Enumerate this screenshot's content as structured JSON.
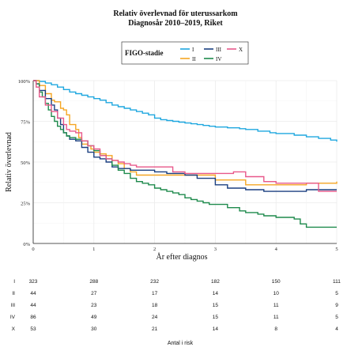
{
  "chart_data": {
    "type": "line",
    "title": "Relativ överlevnad för uterussarkom",
    "subtitle": "Diagnosår 2010–2019, Riket",
    "xlabel": "År efter diagnos",
    "ylabel": "Relativ överlevnad",
    "xlim": [
      0,
      5
    ],
    "ylim": [
      0,
      100
    ],
    "x_ticks": [
      0,
      1,
      2,
      3,
      4,
      5
    ],
    "y_ticks": [
      0,
      25,
      50,
      75,
      100
    ],
    "y_tick_labels": [
      "0%",
      "25%",
      "50%",
      "75%",
      "100%"
    ],
    "grid": true,
    "legend": {
      "title": "FIGO-stadie",
      "placement": "top",
      "rows": [
        [
          "I",
          "III",
          "X"
        ],
        [
          "II",
          "IV"
        ]
      ]
    },
    "series": [
      {
        "name": "I",
        "color": "#1fa7df",
        "points": [
          [
            0,
            100
          ],
          [
            0.05,
            100
          ],
          [
            0.1,
            99.5
          ],
          [
            0.2,
            98.5
          ],
          [
            0.3,
            97.5
          ],
          [
            0.4,
            96
          ],
          [
            0.5,
            94.5
          ],
          [
            0.6,
            93
          ],
          [
            0.7,
            92
          ],
          [
            0.8,
            91
          ],
          [
            0.9,
            90
          ],
          [
            1.0,
            89
          ],
          [
            1.1,
            88
          ],
          [
            1.2,
            86.5
          ],
          [
            1.3,
            85
          ],
          [
            1.4,
            84
          ],
          [
            1.5,
            83
          ],
          [
            1.6,
            82
          ],
          [
            1.7,
            81
          ],
          [
            1.8,
            80
          ],
          [
            1.9,
            79
          ],
          [
            2.0,
            77
          ],
          [
            2.1,
            76
          ],
          [
            2.2,
            75.5
          ],
          [
            2.3,
            75
          ],
          [
            2.4,
            74.5
          ],
          [
            2.5,
            74
          ],
          [
            2.6,
            73.5
          ],
          [
            2.7,
            73
          ],
          [
            2.8,
            72.5
          ],
          [
            2.9,
            72
          ],
          [
            3.0,
            71.5
          ],
          [
            3.2,
            71
          ],
          [
            3.4,
            70.5
          ],
          [
            3.5,
            70
          ],
          [
            3.7,
            69
          ],
          [
            3.9,
            68
          ],
          [
            4.0,
            67.5
          ],
          [
            4.3,
            66.5
          ],
          [
            4.5,
            65.5
          ],
          [
            4.7,
            64.5
          ],
          [
            4.9,
            63.5
          ],
          [
            5.0,
            62.5
          ]
        ]
      },
      {
        "name": "II",
        "color": "#f5a623",
        "points": [
          [
            0,
            100
          ],
          [
            0.1,
            97
          ],
          [
            0.2,
            92
          ],
          [
            0.3,
            88
          ],
          [
            0.35,
            87
          ],
          [
            0.45,
            83
          ],
          [
            0.5,
            82
          ],
          [
            0.55,
            79
          ],
          [
            0.6,
            73
          ],
          [
            0.7,
            70
          ],
          [
            0.75,
            65
          ],
          [
            0.8,
            61
          ],
          [
            0.9,
            60
          ],
          [
            0.95,
            58
          ],
          [
            1.0,
            56
          ],
          [
            1.1,
            55
          ],
          [
            1.2,
            54
          ],
          [
            1.3,
            51
          ],
          [
            1.4,
            49
          ],
          [
            1.5,
            46
          ],
          [
            1.6,
            44
          ],
          [
            1.7,
            42
          ],
          [
            2.0,
            42
          ],
          [
            2.5,
            42
          ],
          [
            3.0,
            39
          ],
          [
            3.5,
            36
          ],
          [
            4.0,
            36
          ],
          [
            4.5,
            37
          ],
          [
            5.0,
            38
          ]
        ]
      },
      {
        "name": "III",
        "color": "#1a3f80",
        "points": [
          [
            0,
            100
          ],
          [
            0.05,
            98
          ],
          [
            0.1,
            94
          ],
          [
            0.2,
            89
          ],
          [
            0.3,
            85
          ],
          [
            0.35,
            82
          ],
          [
            0.4,
            77
          ],
          [
            0.45,
            73
          ],
          [
            0.5,
            68
          ],
          [
            0.55,
            66
          ],
          [
            0.6,
            64
          ],
          [
            0.7,
            63
          ],
          [
            0.8,
            59
          ],
          [
            0.9,
            56
          ],
          [
            1.0,
            53
          ],
          [
            1.1,
            52
          ],
          [
            1.2,
            50
          ],
          [
            1.3,
            47
          ],
          [
            1.4,
            46
          ],
          [
            1.5,
            46
          ],
          [
            1.6,
            45
          ],
          [
            1.8,
            45
          ],
          [
            2.0,
            44
          ],
          [
            2.2,
            43
          ],
          [
            2.5,
            42
          ],
          [
            2.7,
            40
          ],
          [
            3.0,
            36
          ],
          [
            3.2,
            34
          ],
          [
            3.5,
            33
          ],
          [
            3.8,
            32
          ],
          [
            4.0,
            32
          ],
          [
            4.5,
            33
          ],
          [
            5.0,
            33
          ]
        ]
      },
      {
        "name": "IV",
        "color": "#1e8a4c",
        "points": [
          [
            0,
            100
          ],
          [
            0.05,
            98
          ],
          [
            0.1,
            93
          ],
          [
            0.15,
            90
          ],
          [
            0.2,
            86
          ],
          [
            0.25,
            82
          ],
          [
            0.3,
            78
          ],
          [
            0.35,
            75
          ],
          [
            0.4,
            72
          ],
          [
            0.45,
            70
          ],
          [
            0.5,
            68
          ],
          [
            0.55,
            66
          ],
          [
            0.6,
            65
          ],
          [
            0.7,
            64
          ],
          [
            0.8,
            63
          ],
          [
            0.9,
            60
          ],
          [
            1.0,
            57
          ],
          [
            1.1,
            54
          ],
          [
            1.2,
            52
          ],
          [
            1.3,
            48
          ],
          [
            1.4,
            45
          ],
          [
            1.5,
            43
          ],
          [
            1.6,
            40
          ],
          [
            1.7,
            38
          ],
          [
            1.8,
            37
          ],
          [
            1.9,
            36
          ],
          [
            2.0,
            34
          ],
          [
            2.1,
            33
          ],
          [
            2.2,
            32
          ],
          [
            2.3,
            31
          ],
          [
            2.4,
            30
          ],
          [
            2.5,
            28
          ],
          [
            2.6,
            27
          ],
          [
            2.7,
            26
          ],
          [
            2.8,
            25
          ],
          [
            2.9,
            24
          ],
          [
            3.0,
            24
          ],
          [
            3.2,
            22
          ],
          [
            3.4,
            20
          ],
          [
            3.5,
            19
          ],
          [
            3.7,
            18
          ],
          [
            3.8,
            17
          ],
          [
            4.0,
            16
          ],
          [
            4.2,
            16
          ],
          [
            4.3,
            15
          ],
          [
            4.4,
            12
          ],
          [
            4.5,
            10
          ],
          [
            4.7,
            10
          ],
          [
            5.0,
            10
          ]
        ]
      },
      {
        "name": "X",
        "color": "#e8588a",
        "points": [
          [
            0,
            100
          ],
          [
            0.05,
            96
          ],
          [
            0.1,
            90
          ],
          [
            0.2,
            85
          ],
          [
            0.3,
            81
          ],
          [
            0.4,
            77
          ],
          [
            0.5,
            73
          ],
          [
            0.55,
            70
          ],
          [
            0.6,
            69
          ],
          [
            0.7,
            68
          ],
          [
            0.8,
            63
          ],
          [
            0.9,
            60
          ],
          [
            1.0,
            58
          ],
          [
            1.1,
            54
          ],
          [
            1.2,
            52
          ],
          [
            1.3,
            51
          ],
          [
            1.4,
            50
          ],
          [
            1.5,
            49
          ],
          [
            1.6,
            48
          ],
          [
            1.7,
            47
          ],
          [
            1.8,
            47
          ],
          [
            2.0,
            47
          ],
          [
            2.3,
            44
          ],
          [
            2.5,
            43
          ],
          [
            2.8,
            43
          ],
          [
            3.0,
            43
          ],
          [
            3.3,
            44
          ],
          [
            3.5,
            41
          ],
          [
            3.8,
            38
          ],
          [
            4.0,
            37
          ],
          [
            4.3,
            37
          ],
          [
            4.5,
            37
          ],
          [
            4.7,
            32
          ],
          [
            5.0,
            32
          ]
        ]
      }
    ],
    "risk_table": {
      "caption": "Antal i risk",
      "x": [
        0,
        1,
        2,
        3,
        4,
        5
      ],
      "rows": [
        {
          "name": "I",
          "values": [
            323,
            288,
            232,
            182,
            150,
            111
          ]
        },
        {
          "name": "II",
          "values": [
            44,
            27,
            17,
            14,
            10,
            5
          ]
        },
        {
          "name": "III",
          "values": [
            44,
            23,
            18,
            15,
            11,
            9
          ]
        },
        {
          "name": "IV",
          "values": [
            86,
            49,
            24,
            15,
            11,
            5
          ]
        },
        {
          "name": "X",
          "values": [
            53,
            30,
            21,
            14,
            8,
            4
          ]
        }
      ]
    }
  }
}
